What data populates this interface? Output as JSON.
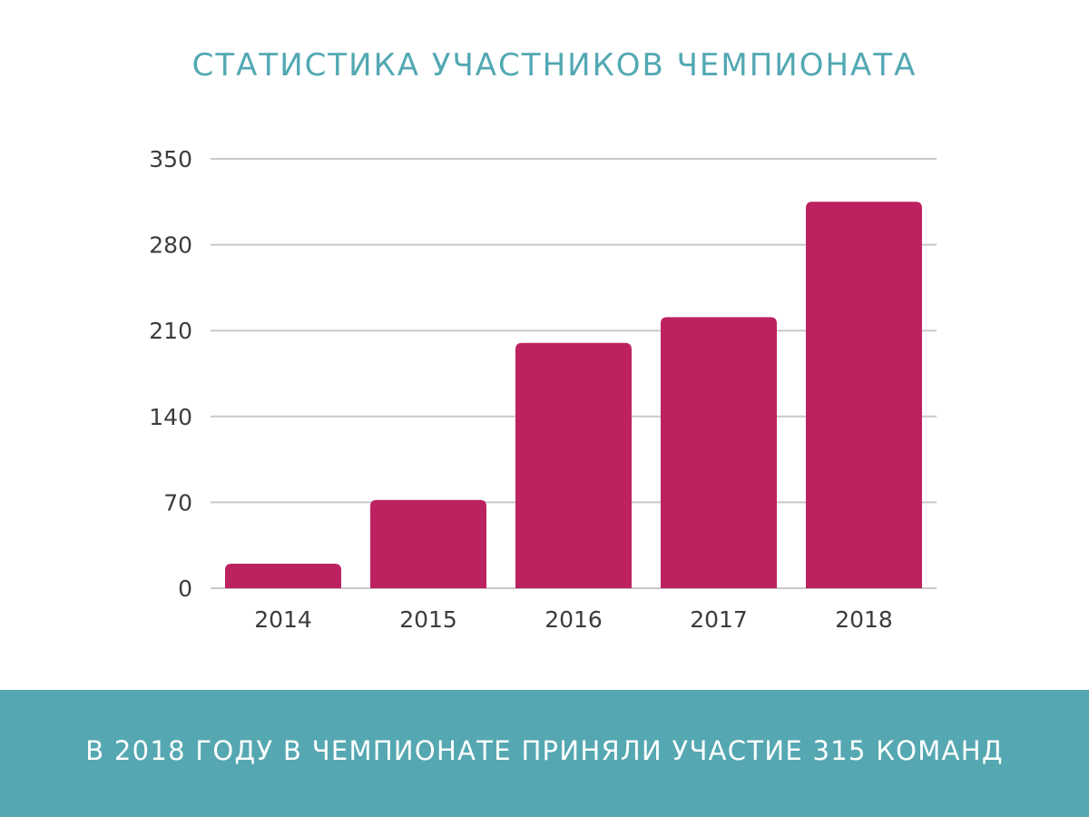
{
  "title": "СТАТИСТИКА УЧАСТНИКОВ ЧЕМПИОНАТА",
  "footer_text": "В 2018 ГОДУ В ЧЕМПИОНАТЕ ПРИНЯЛИ УЧАСТИЕ 315 КОМАНД",
  "colors": {
    "bar": "#bd2260",
    "title": "#52a8b3",
    "footer_background": "#55a8b2",
    "footer_text": "#ffffff",
    "gridline": "#c8c8c8",
    "tick_text": "#3c3c3c"
  },
  "chart_data": {
    "type": "bar",
    "title": "СТАТИСТИКА УЧАСТНИКОВ ЧЕМПИОНАТА",
    "xlabel": "",
    "ylabel": "",
    "categories": [
      "2014",
      "2015",
      "2016",
      "2017",
      "2018"
    ],
    "values": [
      20,
      72,
      200,
      221,
      315
    ],
    "ylim": [
      0,
      350
    ],
    "yticks": [
      0,
      70,
      140,
      210,
      280,
      350
    ],
    "grid": true,
    "legend": "none"
  }
}
